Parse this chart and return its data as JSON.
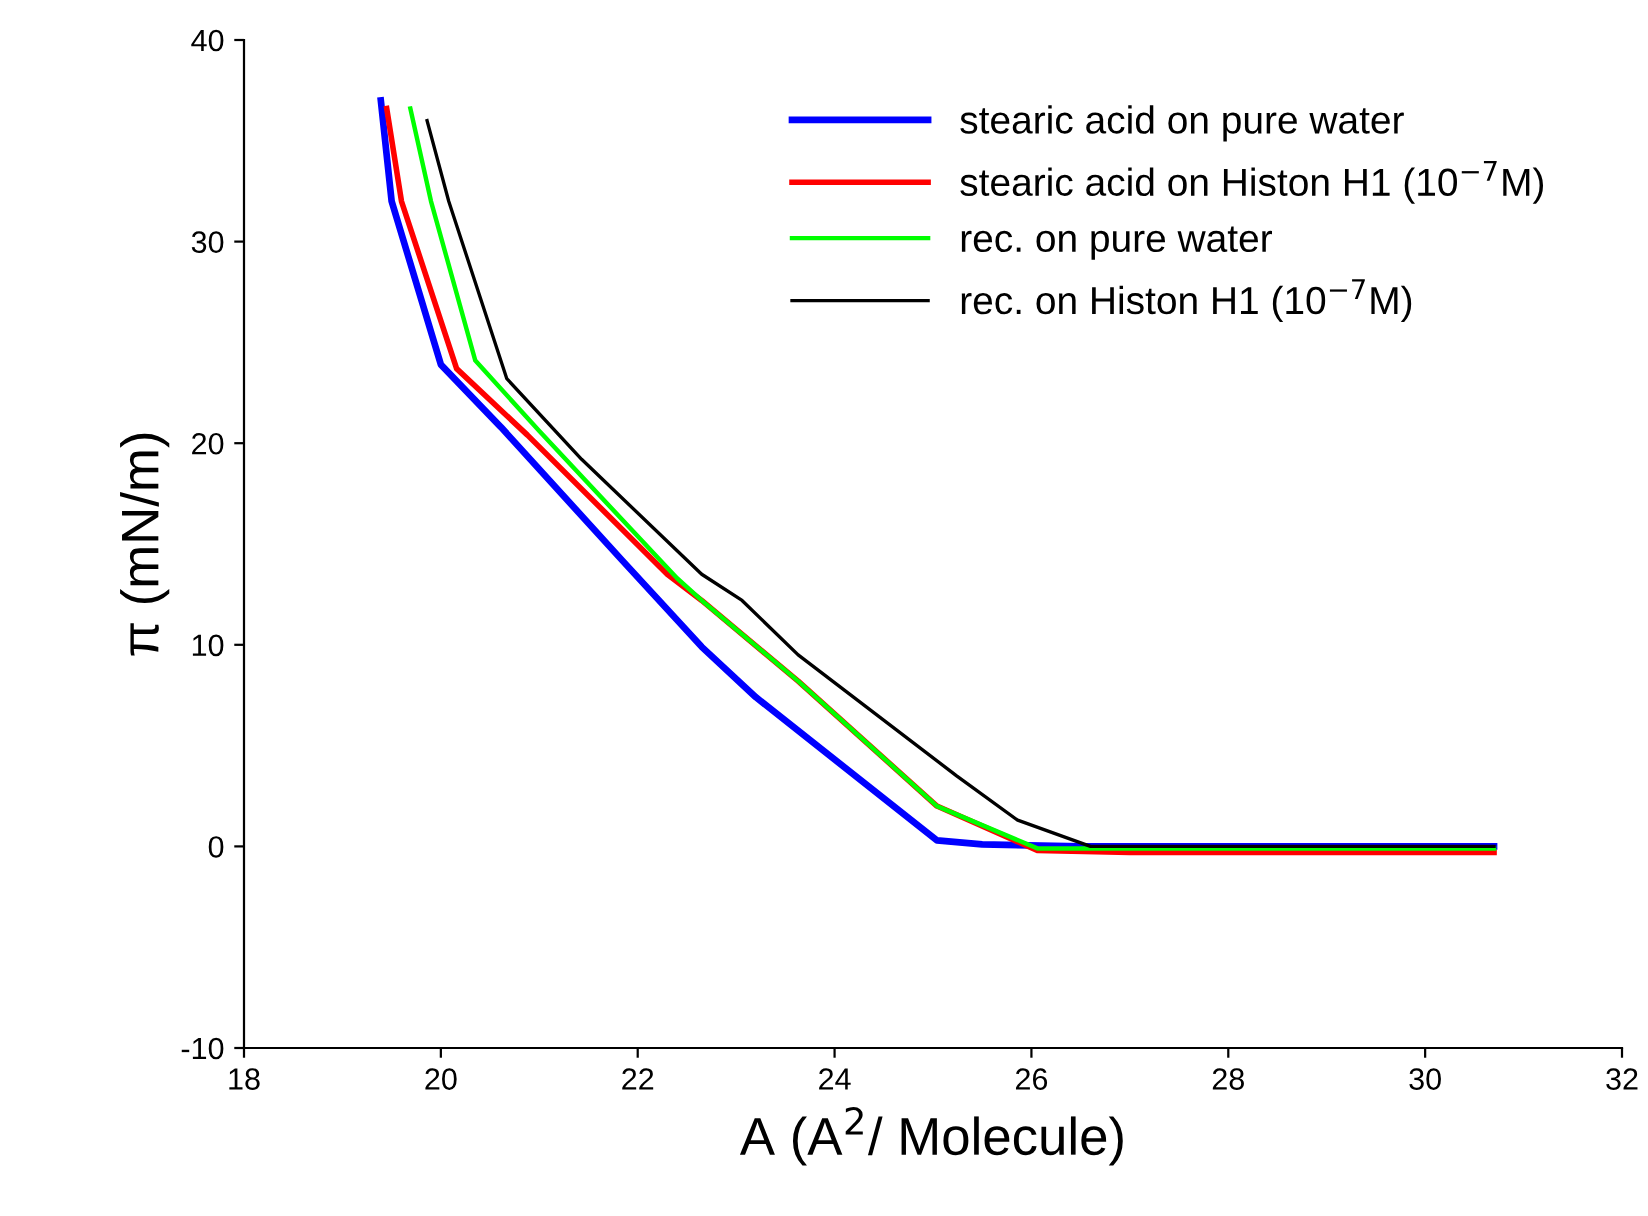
{
  "chart_data": {
    "type": "line",
    "xlabel": "A (A$^{2}$/ Molecule)",
    "ylabel": "π (mN/m)",
    "xlim": [
      18,
      32
    ],
    "xticks": [
      18,
      20,
      22,
      24,
      26,
      28,
      30,
      32
    ],
    "ylim": [
      -10,
      40
    ],
    "yticks": [
      -10,
      0,
      10,
      20,
      30,
      40
    ],
    "grid": false,
    "legend": "top right",
    "marker": "none",
    "line_style": "solid",
    "series": [
      {
        "name": "stearic acid on pure water",
        "color": "#0000ff",
        "x": [
          19.39,
          19.5,
          20.0,
          20.61,
          21.84,
          22.65,
          23.2,
          25.04,
          25.5,
          26.5,
          28,
          30.7
        ],
        "values": [
          37,
          32,
          23.9,
          20.8,
          14.2,
          9.9,
          7.4,
          0.3,
          0.1,
          0,
          0,
          0
        ]
      },
      {
        "name": "stearic acid on Histon H1 (10$^{−7}$M)",
        "color": "#ff0000",
        "x": [
          19.45,
          19.6,
          20.16,
          20.88,
          22.3,
          22.65,
          23.63,
          25.04,
          26.06,
          27,
          30.7
        ],
        "values": [
          36.6,
          32,
          23.7,
          20.4,
          13.5,
          12.2,
          8.2,
          2.0,
          -0.2,
          -0.3,
          -0.3
        ]
      },
      {
        "name": "rec. on pure water",
        "color": "#00ff00",
        "x": [
          19.69,
          19.9,
          20.35,
          21.0,
          22.4,
          22.65,
          23.63,
          25.04,
          26.06,
          27,
          30.7
        ],
        "values": [
          36.6,
          32,
          24.1,
          20.6,
          13.3,
          12.2,
          8.2,
          2.0,
          -0.1,
          -0.1,
          -0.1
        ]
      },
      {
        "name": "rec. on Histon H1 (10$^{−7}$M)",
        "color": "#000000",
        "x": [
          19.86,
          20.08,
          20.67,
          21.43,
          22.65,
          23.06,
          23.63,
          25.24,
          25.86,
          26.6,
          28,
          30.7
        ],
        "values": [
          36,
          32,
          23.2,
          19.2,
          13.5,
          12.2,
          9.5,
          3.5,
          1.3,
          0,
          0,
          0
        ]
      }
    ]
  }
}
